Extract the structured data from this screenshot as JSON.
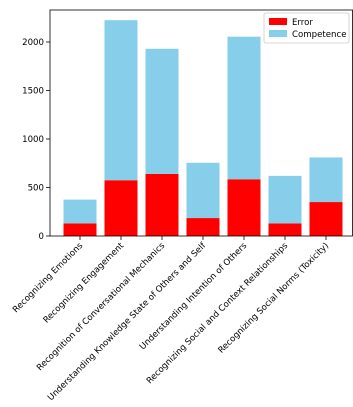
{
  "chart_data": {
    "type": "bar",
    "stacked": true,
    "categories": [
      "Recognizing Emotions",
      "Recognizing Engagement",
      "Recognition of Conversational Mechanics",
      "Understanding Knowledge State of Others and Self",
      "Understanding Intention of Others",
      "Recognizing Social and Context Relationships",
      "Recognizing Social Norms (Toxicity)"
    ],
    "series": [
      {
        "name": "Error",
        "color": "#ff0000",
        "values": [
          130,
          575,
          640,
          185,
          585,
          130,
          350
        ]
      },
      {
        "name": "Competence",
        "color": "#87ceeb",
        "values": [
          245,
          1650,
          1290,
          570,
          1470,
          490,
          460
        ]
      }
    ],
    "yticks": [
      0,
      500,
      1000,
      1500,
      2000
    ],
    "ylim": [
      0,
      2330
    ],
    "grid": false,
    "legend_position": "top-right"
  }
}
